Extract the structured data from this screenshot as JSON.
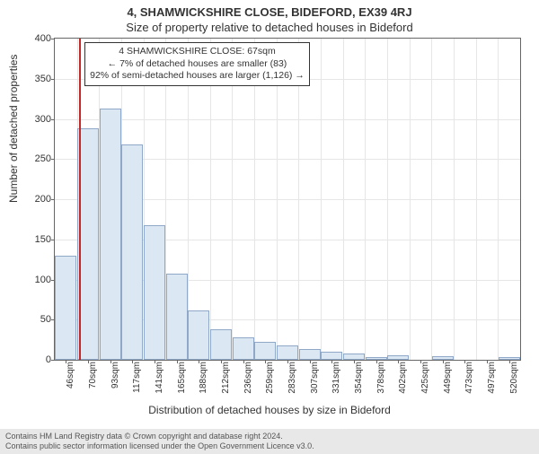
{
  "title_line1": "4, SHAMWICKSHIRE CLOSE, BIDEFORD, EX39 4RJ",
  "title_line2": "Size of property relative to detached houses in Bideford",
  "chart": {
    "type": "bar",
    "categories": [
      "46sqm",
      "70sqm",
      "93sqm",
      "117sqm",
      "141sqm",
      "165sqm",
      "188sqm",
      "212sqm",
      "236sqm",
      "259sqm",
      "283sqm",
      "307sqm",
      "331sqm",
      "354sqm",
      "378sqm",
      "402sqm",
      "425sqm",
      "449sqm",
      "473sqm",
      "497sqm",
      "520sqm"
    ],
    "values": [
      130,
      288,
      313,
      268,
      168,
      107,
      62,
      38,
      28,
      22,
      18,
      13,
      10,
      8,
      3,
      6,
      0,
      5,
      0,
      0,
      3
    ],
    "bar_fill": "#dbe7f3",
    "bar_border": "#8fa8c8",
    "bar_width": 0.98,
    "ylim": [
      0,
      400
    ],
    "ytick_step": 50,
    "yticks": [
      0,
      50,
      100,
      150,
      200,
      250,
      300,
      350,
      400
    ],
    "xlabel": "Distribution of detached houses by size in Bideford",
    "ylabel": "Number of detached properties",
    "background_color": "#ffffff",
    "grid_color": "#e6e6e6",
    "axis_color": "#666666",
    "label_fontsize": 12,
    "tick_fontsize": 11,
    "xtick_fontsize": 10,
    "marker": {
      "position_category_index": 1,
      "color": "#c62828",
      "box_lines": [
        "4 SHAMWICKSHIRE CLOSE: 67sqm",
        "← 7% of detached houses are smaller (83)",
        "92% of semi-detached houses are larger (1,126) →"
      ],
      "box_border": "#333333",
      "box_bg": "#ffffff",
      "box_fontsize": 10.5
    }
  },
  "footer_line1": "Contains HM Land Registry data © Crown copyright and database right 2024.",
  "footer_line2": "Contains public sector information licensed under the Open Government Licence v3.0."
}
